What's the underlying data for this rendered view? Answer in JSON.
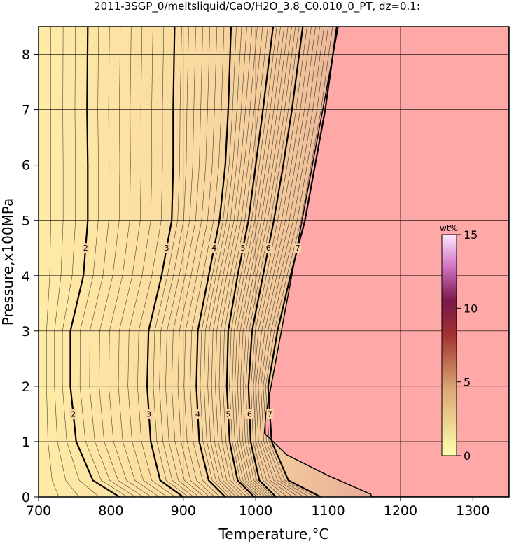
{
  "chart_data": {
    "type": "contour",
    "title": "2011-3SGP_0/meltsliquid/CaO/H2O_3.8_C0.010_0_PT, dz=0.1:",
    "x_label": "Temperature,°C",
    "y_label": "Pressure,x100MPa",
    "xlim": [
      700,
      1350
    ],
    "ylim": [
      0,
      8.5
    ],
    "xticks": [
      700,
      800,
      900,
      1000,
      1100,
      1200,
      1300
    ],
    "yticks": [
      0,
      1,
      2,
      3,
      4,
      5,
      6,
      7,
      8
    ],
    "grid": true,
    "contours": [
      {
        "level": 2,
        "x": [
          812,
          775,
          752,
          744,
          744,
          762,
          768,
          768,
          767,
          768
        ],
        "y": [
          0,
          0.3,
          1,
          2,
          3,
          4,
          5,
          6,
          7,
          8.5
        ]
      },
      {
        "level": 3,
        "x": [
          900,
          868,
          855,
          850,
          852,
          870,
          884,
          886,
          886,
          888
        ],
        "y": [
          0,
          0.3,
          1,
          2,
          3,
          4,
          5,
          6,
          7,
          8.5
        ]
      },
      {
        "level": 4,
        "x": [
          958,
          935,
          922,
          918,
          920,
          935,
          950,
          958,
          962,
          966
        ],
        "y": [
          0,
          0.3,
          1,
          2,
          3,
          4,
          5,
          6,
          7,
          8.5
        ]
      },
      {
        "level": 5,
        "x": [
          998,
          975,
          964,
          960,
          962,
          975,
          990,
          1000,
          1010,
          1024
        ],
        "y": [
          0,
          0.3,
          1,
          2,
          3,
          4,
          5,
          6,
          7,
          8.5
        ]
      },
      {
        "level": 6,
        "x": [
          1028,
          1005,
          993,
          990,
          995,
          1010,
          1025,
          1038,
          1050,
          1065
        ],
        "y": [
          0,
          0.3,
          1,
          2,
          3,
          4,
          5,
          6,
          7,
          8.5
        ]
      },
      {
        "level": 7,
        "x": [
          1090,
          1045,
          1022,
          1017,
          1030,
          1048,
          1068,
          1082,
          1096,
          1112
        ],
        "y": [
          0,
          0.3,
          1,
          2,
          3,
          4,
          5,
          6,
          7,
          8.5
        ]
      }
    ],
    "boundary": {
      "x": [
        1114,
        1014,
        1012,
        1043,
        1101,
        1159,
        1160
      ],
      "y": [
        8.5,
        1.5,
        1.15,
        0.76,
        0.38,
        0.05,
        0
      ]
    },
    "colorbar": {
      "label": "wt%",
      "lim": [
        0,
        15
      ],
      "ticks": [
        0,
        5,
        10,
        15
      ]
    }
  }
}
